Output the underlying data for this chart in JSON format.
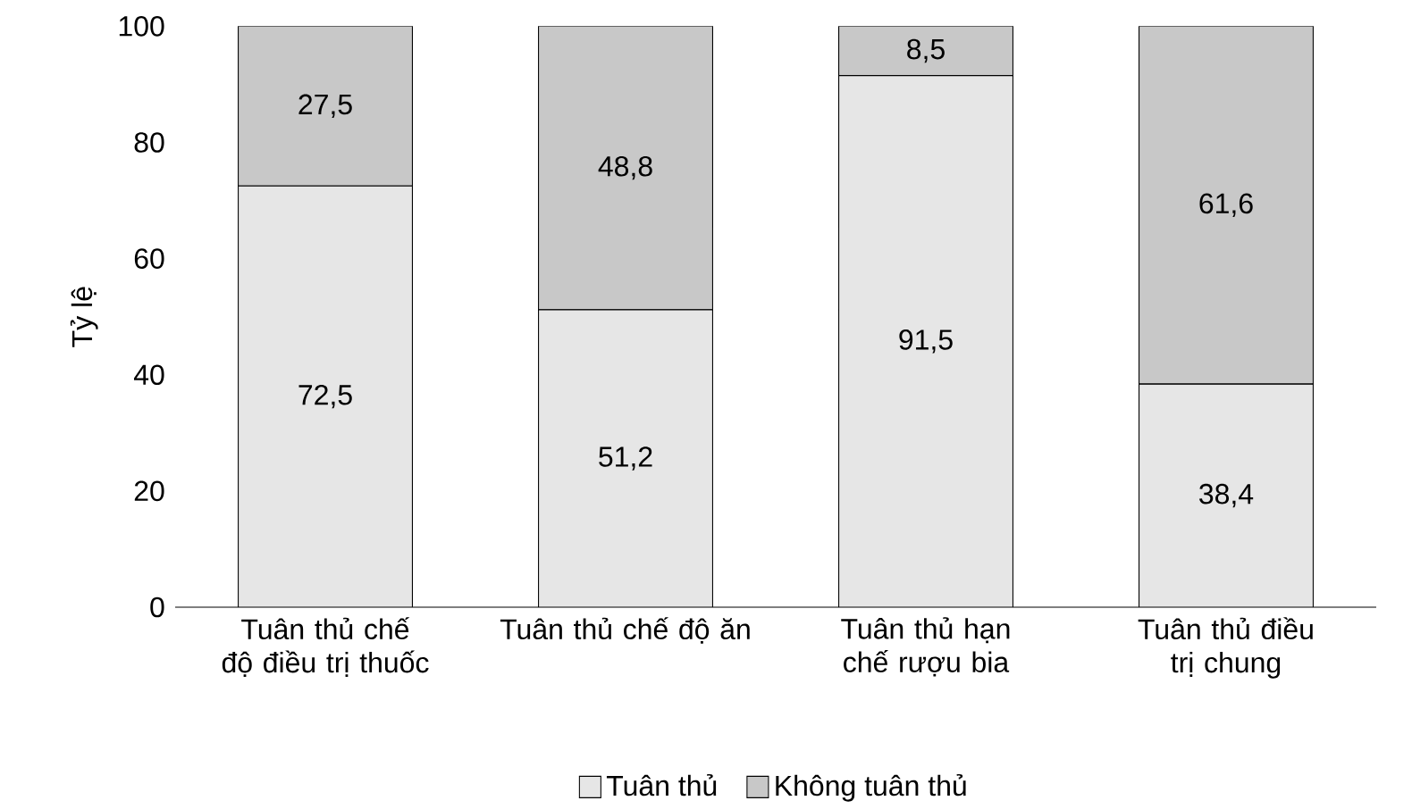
{
  "chart_data": {
    "type": "bar",
    "stacked": true,
    "ylabel": "Tỷ lệ",
    "categories": [
      "Tuân thủ chế độ điều trị thuốc",
      "Tuân thủ chế độ ăn",
      "Tuân thủ hạn chế rượu bia",
      "Tuân thủ điều trị chung"
    ],
    "series": [
      {
        "name": "Tuân thủ",
        "color": "#e6e6e6",
        "values": [
          72.5,
          51.2,
          91.5,
          38.4
        ],
        "value_labels": [
          "72,5",
          "51,2",
          "91,5",
          "38,4"
        ]
      },
      {
        "name": "Không tuân thủ",
        "color": "#c8c8c8",
        "values": [
          27.5,
          48.8,
          8.5,
          61.6
        ],
        "value_labels": [
          "27,5",
          "48,8",
          "8,5",
          "61,6"
        ]
      }
    ],
    "ylim": [
      0,
      100
    ],
    "yticks": [
      0,
      20,
      40,
      60,
      80,
      100
    ],
    "grid": false,
    "legend": "bottom"
  }
}
